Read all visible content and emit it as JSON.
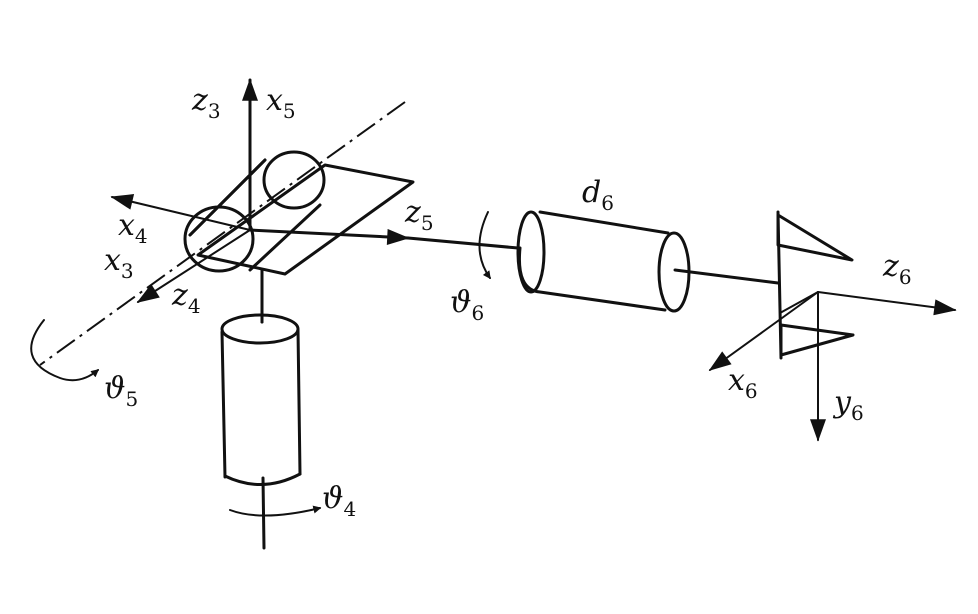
{
  "labels": {
    "z3": {
      "base": "z",
      "sub": "3"
    },
    "x5": {
      "base": "x",
      "sub": "5"
    },
    "x4": {
      "base": "x",
      "sub": "4"
    },
    "x3": {
      "base": "x",
      "sub": "3"
    },
    "z4": {
      "base": "z",
      "sub": "4"
    },
    "z5": {
      "base": "z",
      "sub": "5"
    },
    "d6": {
      "base": "d",
      "sub": "6"
    },
    "theta6": {
      "base": "ϑ",
      "sub": "6"
    },
    "theta5": {
      "base": "ϑ",
      "sub": "5"
    },
    "theta4": {
      "base": "ϑ",
      "sub": "4"
    },
    "z6": {
      "base": "z",
      "sub": "6"
    },
    "x6": {
      "base": "x",
      "sub": "6"
    },
    "y6": {
      "base": "y",
      "sub": "6"
    }
  }
}
